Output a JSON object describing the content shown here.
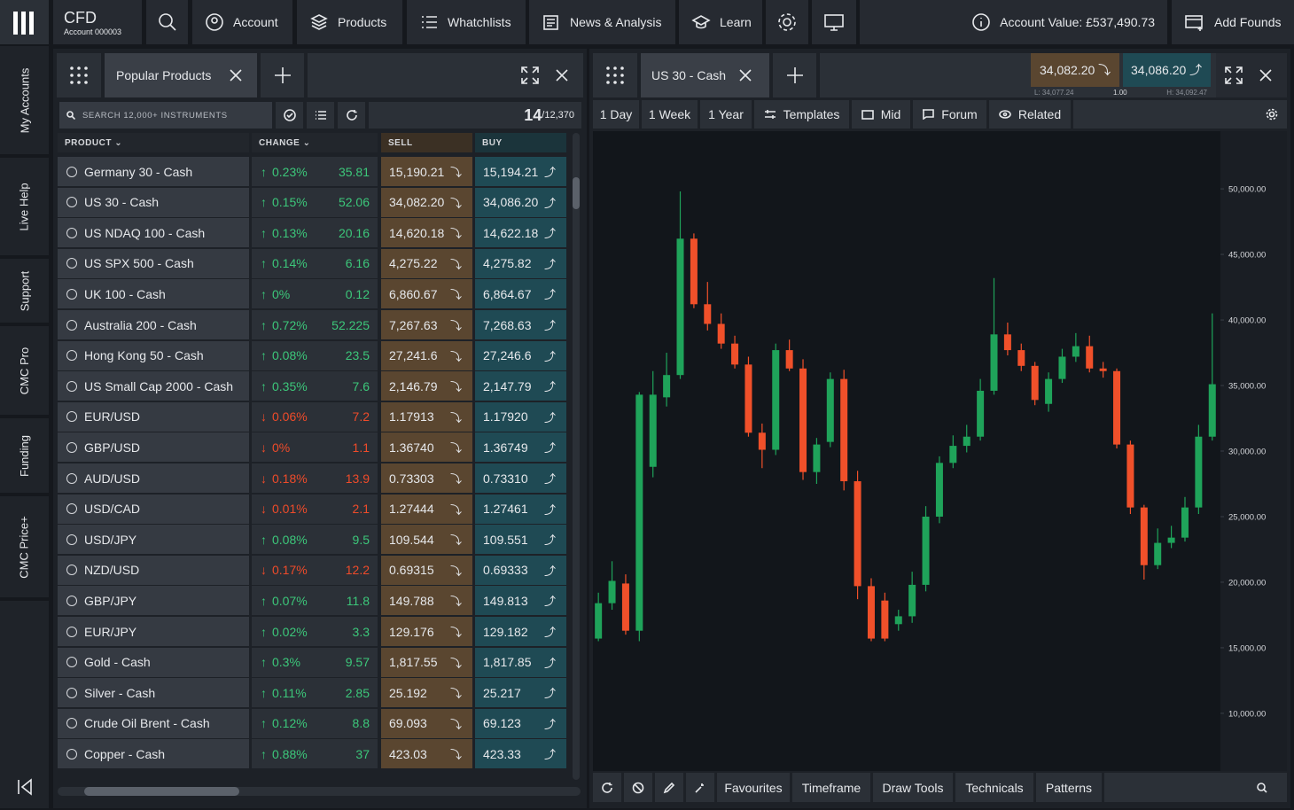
{
  "nav": {
    "brand": "CFD",
    "account_id": "Account 000003",
    "items": [
      "Account",
      "Products",
      "Whatchlists",
      "News & Analysis",
      "Learn"
    ],
    "account_value": "Account Value: £537,490.73",
    "add_funds": "Add Founds"
  },
  "sidebar": [
    "My Accounts",
    "Live Help",
    "Support",
    "CMC Pro",
    "Funding",
    "CMC Price+"
  ],
  "watchlist": {
    "tab": "Popular Products",
    "search_placeholder": "SEARCH 12,000+ INSTRUMENTS",
    "count": "14",
    "total": "/12,370",
    "headers": [
      "PRODUCT",
      "CHANGE",
      "SELL",
      "BUY"
    ],
    "rows": [
      {
        "name": "Germany 30 - Cash",
        "direction": "up",
        "change_pct": "0.23%",
        "change": "35.81",
        "sell": "15,190.21",
        "buy": "15,194.21"
      },
      {
        "name": "US 30 - Cash",
        "direction": "up",
        "change_pct": "0.15%",
        "change": "52.06",
        "sell": "34,082.20",
        "buy": "34,086.20"
      },
      {
        "name": "US NDAQ 100 - Cash",
        "direction": "up",
        "change_pct": "0.13%",
        "change": "20.16",
        "sell": "14,620.18",
        "buy": "14,622.18"
      },
      {
        "name": "US SPX 500 - Cash",
        "direction": "up",
        "change_pct": "0.14%",
        "change": "6.16",
        "sell": "4,275.22",
        "buy": "4,275.82"
      },
      {
        "name": "UK 100 - Cash",
        "direction": "up",
        "change_pct": "0%",
        "change": "0.12",
        "sell": "6,860.67",
        "buy": "6,864.67"
      },
      {
        "name": "Australia 200 - Cash",
        "direction": "up",
        "change_pct": "0.72%",
        "change": "52.225",
        "sell": "7,267.63",
        "buy": "7,268.63"
      },
      {
        "name": "Hong Kong 50 - Cash",
        "direction": "up",
        "change_pct": "0.08%",
        "change": "23.5",
        "sell": "27,241.6",
        "buy": "27,246.6"
      },
      {
        "name": "US Small Cap 2000 - Cash",
        "direction": "up",
        "change_pct": "0.35%",
        "change": "7.6",
        "sell": "2,146.79",
        "buy": "2,147.79"
      },
      {
        "name": "EUR/USD",
        "direction": "down",
        "change_pct": "0.06%",
        "change": "7.2",
        "sell": "1.17913",
        "buy": "1.17920"
      },
      {
        "name": "GBP/USD",
        "direction": "down",
        "change_pct": "0%",
        "change": "1.1",
        "sell": "1.36740",
        "buy": "1.36749"
      },
      {
        "name": "AUD/USD",
        "direction": "down",
        "change_pct": "0.18%",
        "change": "13.9",
        "sell": "0.73303",
        "buy": "0.73310"
      },
      {
        "name": "USD/CAD",
        "direction": "down",
        "change_pct": "0.01%",
        "change": "2.1",
        "sell": "1.27444",
        "buy": "1.27461"
      },
      {
        "name": "USD/JPY",
        "direction": "up",
        "change_pct": "0.08%",
        "change": "9.5",
        "sell": "109.544",
        "buy": "109.551"
      },
      {
        "name": "NZD/USD",
        "direction": "down",
        "change_pct": "0.17%",
        "change": "12.2",
        "sell": "0.69315",
        "buy": "0.69333"
      },
      {
        "name": "GBP/JPY",
        "direction": "up",
        "change_pct": "0.07%",
        "change": "11.8",
        "sell": "149.788",
        "buy": "149.813"
      },
      {
        "name": "EUR/JPY",
        "direction": "up",
        "change_pct": "0.02%",
        "change": "3.3",
        "sell": "129.176",
        "buy": "129.182"
      },
      {
        "name": "Gold - Cash",
        "direction": "up",
        "change_pct": "0.3%",
        "change": "9.57",
        "sell": "1,817.55",
        "buy": "1,817.85"
      },
      {
        "name": "Silver - Cash",
        "direction": "up",
        "change_pct": "0.11%",
        "change": "2.85",
        "sell": "25.192",
        "buy": "25.217"
      },
      {
        "name": "Crude Oil Brent - Cash",
        "direction": "up",
        "change_pct": "0.12%",
        "change": "8.8",
        "sell": "69.093",
        "buy": "69.123"
      },
      {
        "name": "Copper - Cash",
        "direction": "up",
        "change_pct": "0.88%",
        "change": "37",
        "sell": "423.03",
        "buy": "423.33"
      }
    ]
  },
  "chart_panel": {
    "tab": "US 30 - Cash",
    "sell": "34,082.20",
    "buy": "34,086.20",
    "low": "L: 34,077.24",
    "spread": "1.00",
    "high": "H: 34,092.47",
    "toolbar": [
      "1 Day",
      "1 Week",
      "1 Year",
      "Templates",
      "Mid",
      "Forum",
      "Related"
    ],
    "bottom_toolbar": [
      "Favourites",
      "Timeframe",
      "Draw Tools",
      "Technicals",
      "Patterns"
    ]
  },
  "chart_data": {
    "type": "candlestick",
    "up_color": "#1fa35a",
    "down_color": "#f0502a",
    "ylim": [
      5600,
      54400
    ],
    "yticks": [
      {
        "value": 50000,
        "label": "50,000.00"
      },
      {
        "value": 45000,
        "label": "45,000.00"
      },
      {
        "value": 40000,
        "label": "40,000.00"
      },
      {
        "value": 35000,
        "label": "35,000.00"
      },
      {
        "value": 30000,
        "label": "30,000.00"
      },
      {
        "value": 25000,
        "label": "25,000.00"
      },
      {
        "value": 20000,
        "label": "20,000.00"
      },
      {
        "value": 15000,
        "label": "15,000.00"
      },
      {
        "value": 10000,
        "label": "10,000.00"
      }
    ],
    "open": [
      15700,
      18400,
      19900,
      16300,
      28800,
      34100,
      35800,
      46200,
      41200,
      39700,
      38200,
      36600,
      31400,
      30100,
      37700,
      36300,
      28400,
      30700,
      35500,
      27700,
      19700,
      18600,
      16800,
      17400,
      19800,
      25000,
      29100,
      30400,
      31100,
      34600,
      38900,
      37700,
      36500,
      33600,
      35500,
      37200,
      38000,
      36300,
      36100,
      30500,
      25700,
      21300,
      23000,
      23400,
      25700,
      31100
    ],
    "high": [
      19200,
      21600,
      20600,
      34500,
      36100,
      37500,
      49800,
      46600,
      42900,
      40500,
      38800,
      37200,
      32100,
      38200,
      38500,
      37000,
      31000,
      36000,
      36200,
      28500,
      20300,
      19200,
      17900,
      20800,
      25800,
      29600,
      31200,
      32000,
      35500,
      43200,
      39800,
      38200,
      36800,
      36000,
      37800,
      39000,
      38800,
      36800,
      36300,
      30800,
      25900,
      24100,
      24300,
      26500,
      32000,
      40500
    ],
    "low": [
      15500,
      17900,
      16000,
      15500,
      28000,
      33400,
      35500,
      40900,
      39200,
      37800,
      36300,
      31100,
      28700,
      29700,
      36100,
      27800,
      27500,
      30300,
      27000,
      18700,
      15500,
      15500,
      16300,
      16900,
      19300,
      24500,
      28700,
      29900,
      30800,
      34300,
      37300,
      36100,
      33500,
      33000,
      35200,
      36800,
      36000,
      35600,
      30200,
      25200,
      20200,
      21000,
      22600,
      23100,
      25200,
      30800
    ],
    "close": [
      18400,
      20100,
      16300,
      34300,
      34300,
      35800,
      46200,
      41200,
      39700,
      38200,
      36600,
      31400,
      30100,
      37700,
      36300,
      28400,
      30500,
      35500,
      27700,
      19700,
      15700,
      15700,
      17400,
      19800,
      25000,
      29100,
      30400,
      31100,
      34600,
      38900,
      37700,
      36500,
      33900,
      35500,
      37200,
      38000,
      36300,
      36100,
      30500,
      25700,
      21300,
      23000,
      23400,
      25700,
      31100,
      35100
    ]
  }
}
